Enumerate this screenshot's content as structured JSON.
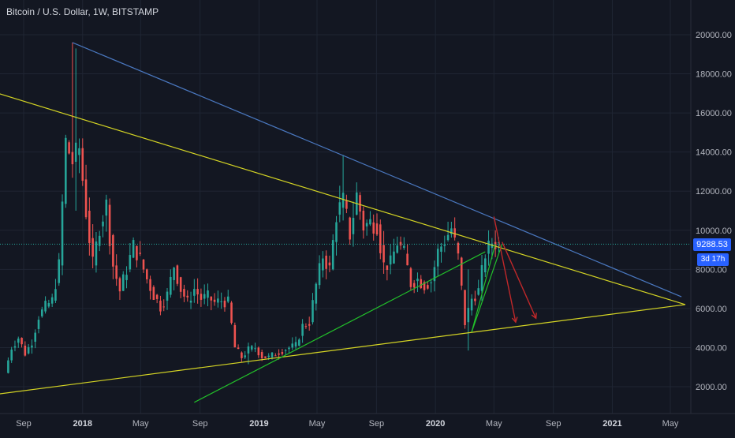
{
  "header": {
    "title": "Bitcoin / U.S. Dollar, 1W, BITSTAMP"
  },
  "price_badge": {
    "value": "9288.53",
    "countdown": "3d 17h"
  },
  "colors": {
    "background": "#131722",
    "up": "#26a69a",
    "down": "#ef5350",
    "yellow": "#d4d424",
    "blue": "#4a78c0",
    "green": "#22c02a",
    "red_arrow": "#c0282a",
    "price_line": "#26a69a",
    "badge": "#2962ff"
  },
  "chart_data": {
    "type": "candlestick",
    "title": "Bitcoin / U.S. Dollar, 1W, BITSTAMP",
    "ylim": [
      1200,
      21000
    ],
    "y_ticks": [
      "2000.00",
      "4000.00",
      "6000.00",
      "8000.00",
      "10000.00",
      "12000.00",
      "14000.00",
      "16000.00",
      "18000.00",
      "20000.00"
    ],
    "x_ticks": [
      {
        "label": "Sep",
        "date": "2017-09-01",
        "year": false
      },
      {
        "label": "2018",
        "date": "2018-01-01",
        "year": true
      },
      {
        "label": "May",
        "date": "2018-05-01",
        "year": false
      },
      {
        "label": "Sep",
        "date": "2018-09-01",
        "year": false
      },
      {
        "label": "2019",
        "date": "2019-01-01",
        "year": true
      },
      {
        "label": "May",
        "date": "2019-05-01",
        "year": false
      },
      {
        "label": "Sep",
        "date": "2019-09-01",
        "year": false
      },
      {
        "label": "2020",
        "date": "2020-01-01",
        "year": true
      },
      {
        "label": "May",
        "date": "2020-05-01",
        "year": false
      },
      {
        "label": "Sep",
        "date": "2020-09-01",
        "year": false
      },
      {
        "label": "2021",
        "date": "2021-01-01",
        "year": true
      },
      {
        "label": "May",
        "date": "2021-05-01",
        "year": false
      }
    ],
    "current_price": 9288.53,
    "weekly_closes": [
      {
        "x": "2017-07-31",
        "v": 2700
      },
      {
        "x": "2017-08-14",
        "v": 4000
      },
      {
        "x": "2017-08-28",
        "v": 4500
      },
      {
        "x": "2017-09-11",
        "v": 3700
      },
      {
        "x": "2017-09-25",
        "v": 4300
      },
      {
        "x": "2017-10-09",
        "v": 5600
      },
      {
        "x": "2017-10-23",
        "v": 6100
      },
      {
        "x": "2017-11-06",
        "v": 6400
      },
      {
        "x": "2017-11-20",
        "v": 8200
      },
      {
        "x": "2017-12-04",
        "v": 14500
      },
      {
        "x": "2017-12-18",
        "v": 13500
      },
      {
        "x": "2018-01-01",
        "v": 14200
      },
      {
        "x": "2018-01-15",
        "v": 11000
      },
      {
        "x": "2018-01-29",
        "v": 8200
      },
      {
        "x": "2018-02-12",
        "v": 10200
      },
      {
        "x": "2018-02-26",
        "v": 11300
      },
      {
        "x": "2018-03-12",
        "v": 8200
      },
      {
        "x": "2018-03-26",
        "v": 6900
      },
      {
        "x": "2018-04-09",
        "v": 8000
      },
      {
        "x": "2018-04-23",
        "v": 9200
      },
      {
        "x": "2018-05-07",
        "v": 8500
      },
      {
        "x": "2018-05-21",
        "v": 7500
      },
      {
        "x": "2018-06-04",
        "v": 6700
      },
      {
        "x": "2018-06-18",
        "v": 6100
      },
      {
        "x": "2018-07-02",
        "v": 6700
      },
      {
        "x": "2018-07-16",
        "v": 8200
      },
      {
        "x": "2018-07-30",
        "v": 7000
      },
      {
        "x": "2018-08-13",
        "v": 6300
      },
      {
        "x": "2018-08-27",
        "v": 7000
      },
      {
        "x": "2018-09-10",
        "v": 6500
      },
      {
        "x": "2018-09-24",
        "v": 6600
      },
      {
        "x": "2018-10-08",
        "v": 6300
      },
      {
        "x": "2018-10-22",
        "v": 6400
      },
      {
        "x": "2018-11-05",
        "v": 6300
      },
      {
        "x": "2018-11-19",
        "v": 4000
      },
      {
        "x": "2018-12-03",
        "v": 3500
      },
      {
        "x": "2018-12-17",
        "v": 3900
      },
      {
        "x": "2018-12-31",
        "v": 4000
      },
      {
        "x": "2019-01-14",
        "v": 3550
      },
      {
        "x": "2019-01-28",
        "v": 3500
      },
      {
        "x": "2019-02-11",
        "v": 3700
      },
      {
        "x": "2019-02-25",
        "v": 3850
      },
      {
        "x": "2019-03-11",
        "v": 4000
      },
      {
        "x": "2019-03-25",
        "v": 4100
      },
      {
        "x": "2019-04-08",
        "v": 5100
      },
      {
        "x": "2019-04-22",
        "v": 5300
      },
      {
        "x": "2019-05-06",
        "v": 7200
      },
      {
        "x": "2019-05-20",
        "v": 8700
      },
      {
        "x": "2019-06-03",
        "v": 8000
      },
      {
        "x": "2019-06-17",
        "v": 10800
      },
      {
        "x": "2019-07-01",
        "v": 11500
      },
      {
        "x": "2019-07-15",
        "v": 9800
      },
      {
        "x": "2019-07-29",
        "v": 11800
      },
      {
        "x": "2019-08-12",
        "v": 10200
      },
      {
        "x": "2019-08-26",
        "v": 10400
      },
      {
        "x": "2019-09-09",
        "v": 10300
      },
      {
        "x": "2019-09-23",
        "v": 8200
      },
      {
        "x": "2019-10-07",
        "v": 8300
      },
      {
        "x": "2019-10-21",
        "v": 9400
      },
      {
        "x": "2019-11-04",
        "v": 8800
      },
      {
        "x": "2019-11-18",
        "v": 7300
      },
      {
        "x": "2019-12-02",
        "v": 7500
      },
      {
        "x": "2019-12-16",
        "v": 7200
      },
      {
        "x": "2019-12-30",
        "v": 7400
      },
      {
        "x": "2020-01-13",
        "v": 8900
      },
      {
        "x": "2020-01-27",
        "v": 9500
      },
      {
        "x": "2020-02-10",
        "v": 10100
      },
      {
        "x": "2020-02-24",
        "v": 8600
      },
      {
        "x": "2020-03-09",
        "v": 5300
      },
      {
        "x": "2020-03-23",
        "v": 6500
      },
      {
        "x": "2020-04-06",
        "v": 6900
      },
      {
        "x": "2020-04-20",
        "v": 8800
      },
      {
        "x": "2020-05-04",
        "v": 9400
      },
      {
        "x": "2020-05-18",
        "v": 9300
      }
    ],
    "trendlines": [
      {
        "color": "yellow",
        "from": {
          "x": "2017-06-01",
          "y": 17300
        },
        "to": {
          "x": "2021-06-01",
          "y": 6200
        }
      },
      {
        "color": "yellow",
        "from": {
          "x": "2017-06-01",
          "y": 1500
        },
        "to": {
          "x": "2021-06-01",
          "y": 6200
        }
      },
      {
        "color": "blue",
        "from": {
          "x": "2017-12-11",
          "y": 19600
        },
        "to": {
          "x": "2021-05-24",
          "y": 6600
        }
      },
      {
        "color": "green",
        "from": {
          "x": "2018-08-20",
          "y": 1200
        },
        "to": {
          "x": "2020-04-13",
          "y": 8900
        }
      },
      {
        "color": "green",
        "from": {
          "x": "2020-03-16",
          "y": 4800
        },
        "to": {
          "x": "2020-05-04",
          "y": 9300
        }
      },
      {
        "color": "green",
        "from": {
          "x": "2020-03-16",
          "y": 4800
        },
        "to": {
          "x": "2020-05-18",
          "y": 9300
        }
      }
    ],
    "arrows": [
      {
        "color": "red_arrow",
        "from": {
          "x": "2020-05-01",
          "y": 10700
        },
        "to": {
          "x": "2020-06-15",
          "y": 5300
        }
      },
      {
        "color": "red_arrow",
        "from": {
          "x": "2020-05-18",
          "y": 9400
        },
        "to": {
          "x": "2020-07-27",
          "y": 5500
        }
      }
    ]
  }
}
